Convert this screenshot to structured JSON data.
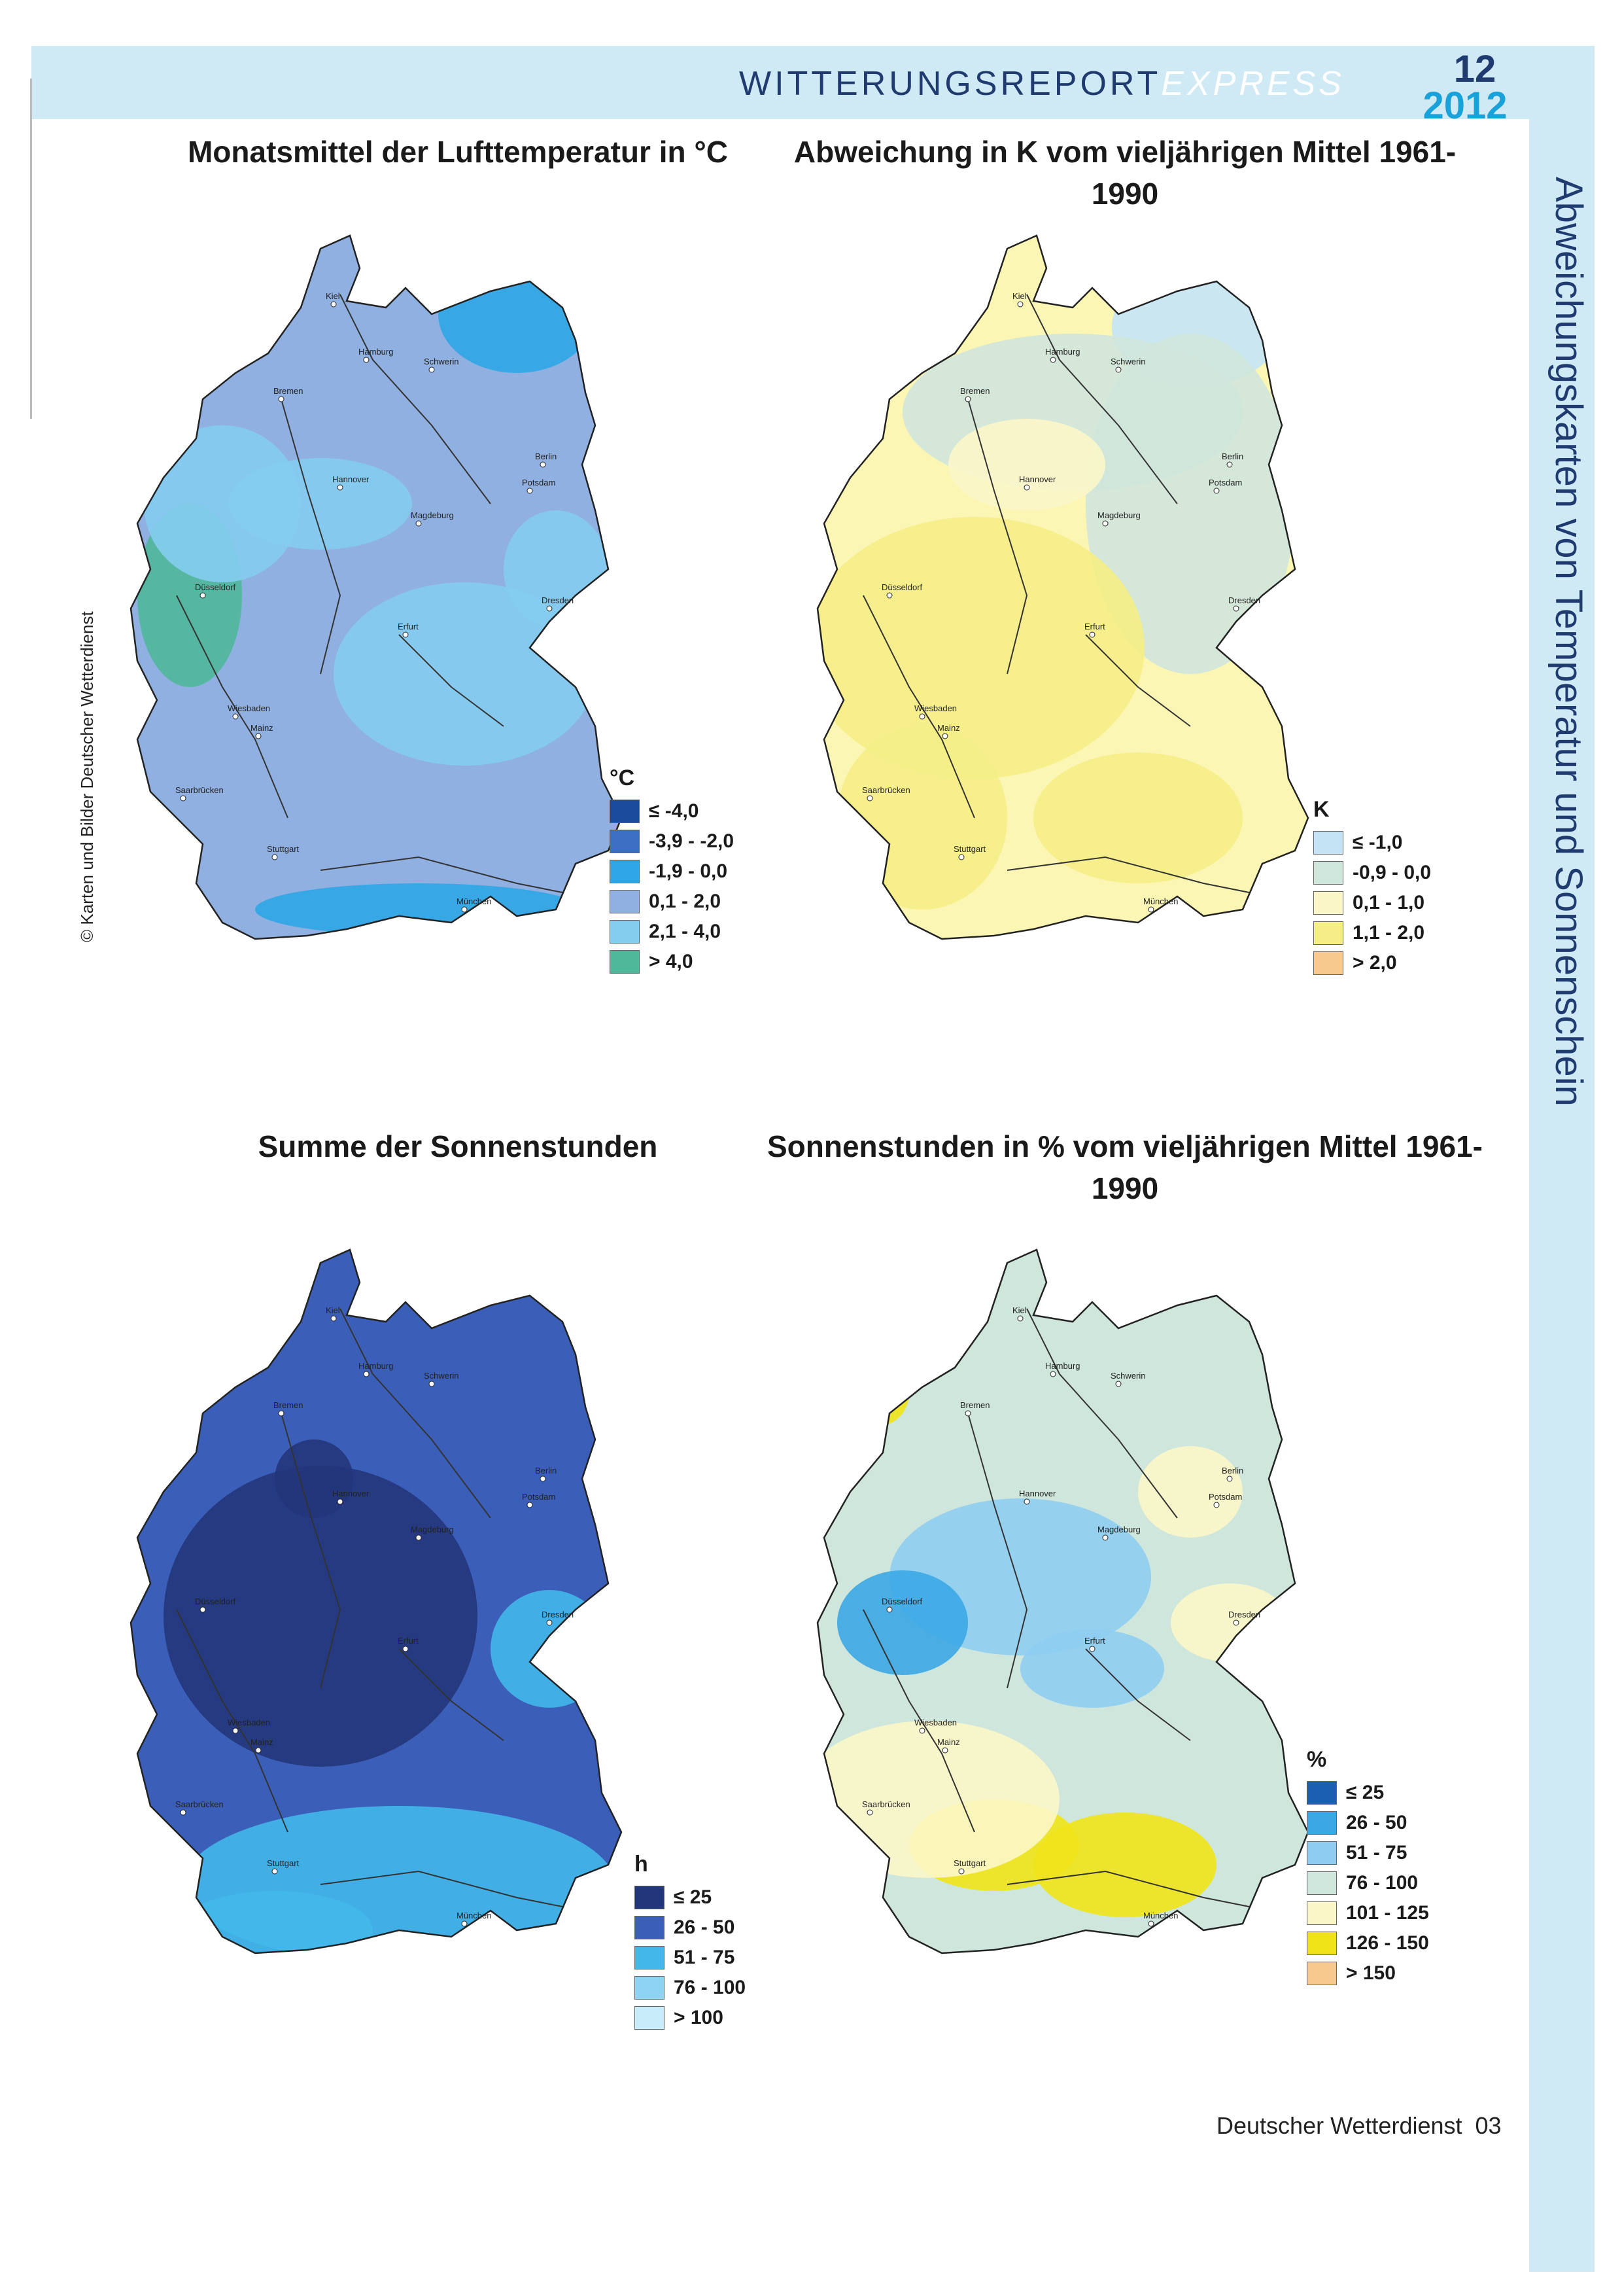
{
  "header": {
    "title_main": "WITTERUNGSREPORT",
    "title_suffix": "EXPRESS",
    "issue_month": "12",
    "issue_year": "2012"
  },
  "sidebar": {
    "text": "Abweichungskarten von Temperatur und Sonnenschein"
  },
  "copyright": "© Karten und Bilder Deutscher Wetterdienst",
  "cities": [
    "Kiel",
    "Hamburg",
    "Schwerin",
    "Bremen",
    "Berlin",
    "Potsdam",
    "Hannover",
    "Magdeburg",
    "Düsseldorf",
    "Erfurt",
    "Dresden",
    "Wiesbaden",
    "Mainz",
    "Saarbrücken",
    "Stuttgart",
    "München"
  ],
  "maps": [
    {
      "title": "Monatsmittel der Lufttemperatur in °C",
      "unit": "°C",
      "base_color": "#8fb0e0",
      "legend": [
        {
          "label": "≤ -4,0",
          "color": "#1a4a9c"
        },
        {
          "label": "-3,9 - -2,0",
          "color": "#3b6fc4"
        },
        {
          "label": "-1,9 - 0,0",
          "color": "#2fa6e6"
        },
        {
          "label": "0,1 - 2,0",
          "color": "#8fb0e0"
        },
        {
          "label": "2,1 - 4,0",
          "color": "#84cdef"
        },
        {
          "label": "> 4,0",
          "color": "#4fb89a"
        }
      ]
    },
    {
      "title": "Abweichung in K vom vieljährigen Mittel 1961-1990",
      "unit": "K",
      "base_color": "#fbf6b4",
      "legend": [
        {
          "label": "≤ -1,0",
          "color": "#c4e4f6"
        },
        {
          "label": "-0,9 - 0,0",
          "color": "#cfe6dc"
        },
        {
          "label": "0,1 - 1,0",
          "color": "#fbf6c8"
        },
        {
          "label": "1,1 - 2,0",
          "color": "#f5ee86"
        },
        {
          "label": "> 2,0",
          "color": "#f7c98c"
        }
      ]
    },
    {
      "title": "Summe der Sonnenstunden",
      "unit": "h",
      "base_color": "#3b5fb8",
      "legend": [
        {
          "label": "≤ 25",
          "color": "#23367a"
        },
        {
          "label": "26 - 50",
          "color": "#3b5fb8"
        },
        {
          "label": "51 - 75",
          "color": "#42b8ea"
        },
        {
          "label": "76 - 100",
          "color": "#8ed4f2"
        },
        {
          "label": "> 100",
          "color": "#c8ecfa"
        }
      ]
    },
    {
      "title": "Sonnenstunden in % vom vieljährigen Mittel 1961-1990",
      "unit": "%",
      "base_color": "#cfe6dc",
      "legend": [
        {
          "label": "≤ 25",
          "color": "#1a5fb0"
        },
        {
          "label": "26 - 50",
          "color": "#3ba7e4"
        },
        {
          "label": "51 - 75",
          "color": "#8ecdf1"
        },
        {
          "label": "76 - 100",
          "color": "#cfe6dc"
        },
        {
          "label": "101 - 125",
          "color": "#fbf6c8"
        },
        {
          "label": "126 - 150",
          "color": "#f0e418"
        },
        {
          "label": "> 150",
          "color": "#f7c98c"
        }
      ]
    }
  ],
  "footer": {
    "text": "Deutscher Wetterdienst",
    "page": "03"
  }
}
